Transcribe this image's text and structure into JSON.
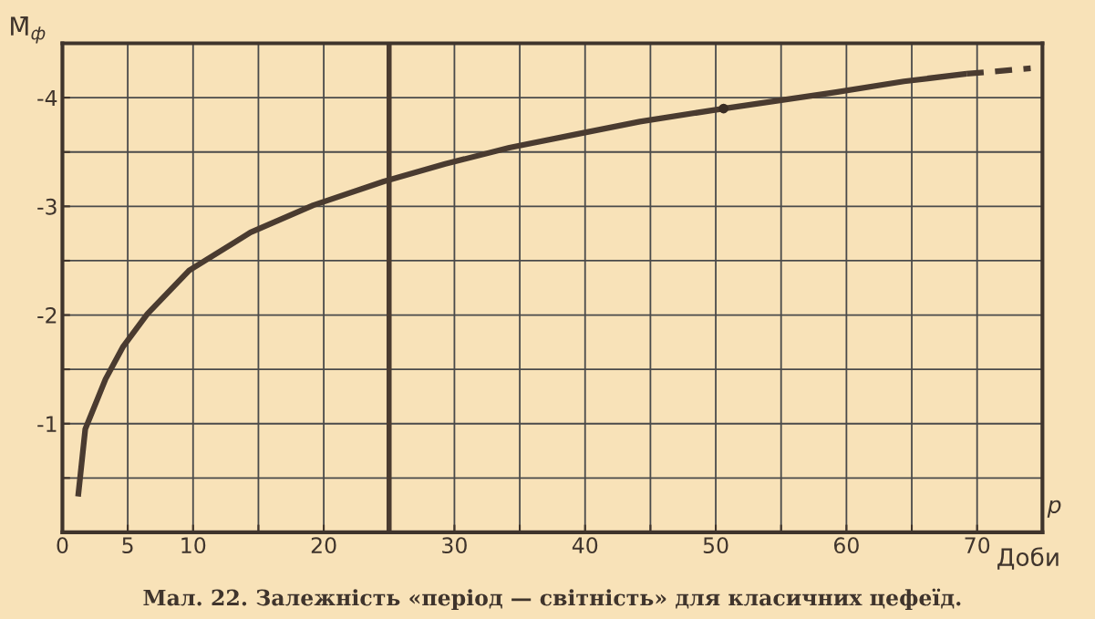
{
  "chart_data": {
    "type": "line",
    "title": "Мал. 22. Залежність «період — світність» для класичних цефеїд.",
    "xlabel": "p",
    "ylabel": "M̄$_{ф}$",
    "annotations": [
      "Доби"
    ],
    "series": [
      {
        "color": "#4a3b30",
        "line_style": "solid",
        "marker": "none",
        "x": [
          1.2,
          1.75,
          3.3,
          4.65,
          6.5,
          9.7,
          14.4,
          19.2,
          24.6,
          29.3,
          34.2,
          39.2,
          44.2,
          50.6,
          59.2,
          64.4,
          69.2
        ],
        "values": [
          -0.33,
          -0.95,
          -1.41,
          -1.71,
          -2.01,
          -2.41,
          -2.76,
          -3.01,
          -3.23,
          -3.39,
          -3.54,
          -3.66,
          -3.78,
          -3.9,
          -4.05,
          -4.15,
          -4.22
        ]
      },
      {
        "color": "#4a3b30",
        "line_style": "dashed",
        "marker": "none",
        "x": [
          69.2,
          74.1
        ],
        "values": [
          -4.22,
          -4.27
        ]
      },
      {
        "type": "scatter",
        "color": "#3a2d25",
        "marker": "circle",
        "x": [
          50.6
        ],
        "values": [
          -3.9
        ]
      }
    ],
    "ref_lines": [
      {
        "axis": "x",
        "value": 25,
        "color": "#4a3b30"
      }
    ],
    "xlim": [
      0,
      75
    ],
    "xticks": [
      0,
      5,
      10,
      {
        "value": 15,
        "label": null
      },
      20,
      {
        "value": 25,
        "label": null
      },
      30,
      {
        "value": 35,
        "label": null
      },
      40,
      {
        "value": 45,
        "label": null
      },
      50,
      {
        "value": 55,
        "label": null
      },
      60,
      {
        "value": 65,
        "label": null
      },
      70
    ],
    "ylim": [
      0,
      -4.5
    ],
    "yticks": [
      {
        "value": -0.5,
        "label": null
      },
      -1,
      {
        "value": -1.5,
        "label": null
      },
      -2,
      {
        "value": -2.5,
        "label": null
      },
      -3,
      {
        "value": -3.5,
        "label": null
      },
      -4
    ],
    "grid": true
  }
}
